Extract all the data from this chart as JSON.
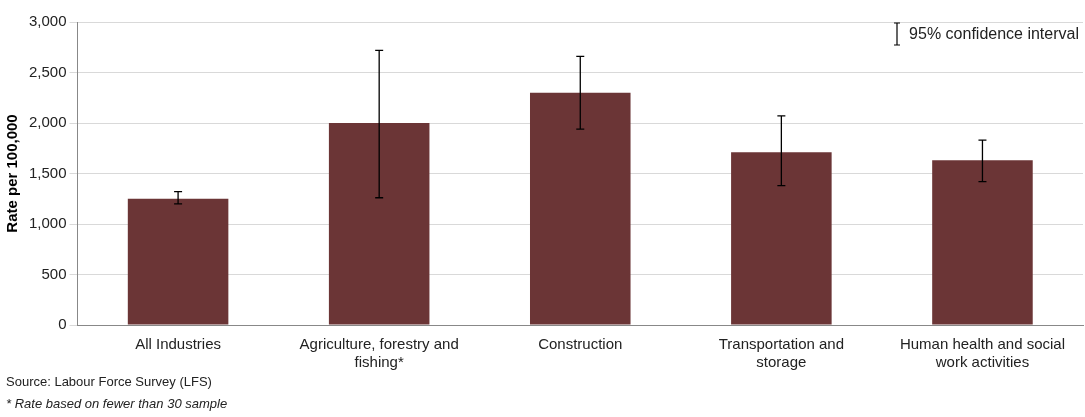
{
  "chart_data": {
    "type": "bar",
    "ylabel": "Rate per 100,000",
    "categories": [
      "All Industries",
      "Agriculture, forestry and fishing*",
      "Construction",
      "Transportation and storage",
      "Human health and social work activities"
    ],
    "values": [
      1250,
      2000,
      2300,
      1710,
      1630
    ],
    "errors": [
      [
        1200,
        1320
      ],
      [
        1260,
        2720
      ],
      [
        1940,
        2660
      ],
      [
        1380,
        2070
      ],
      [
        1420,
        1830
      ]
    ],
    "color": "#6b3536",
    "ylim": [
      0,
      3000
    ],
    "yticks": [
      0,
      500,
      {
        "value": 1000,
        "label": "1,000"
      },
      {
        "value": 1500,
        "label": "1,500"
      },
      {
        "value": 2000,
        "label": "2,000"
      },
      {
        "value": 2500,
        "label": "2,500"
      },
      {
        "value": 3000,
        "label": "3,000"
      }
    ],
    "grid": "y",
    "annotations": [
      "95% confidence interval",
      "Source: Labour Force Survey (LFS)",
      "* Rate based on fewer than 30 sample"
    ]
  }
}
